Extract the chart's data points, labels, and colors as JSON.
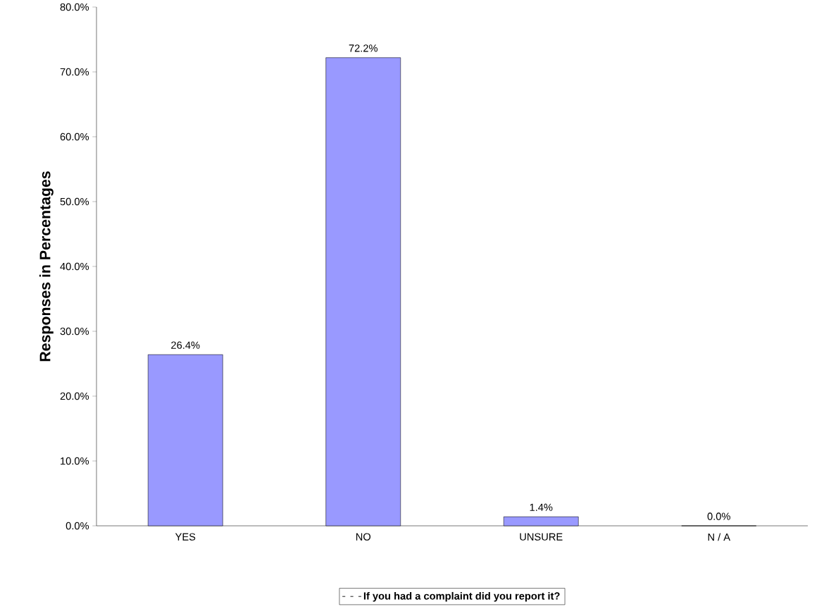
{
  "chart_data": {
    "type": "bar",
    "ylabel": "Responses in Percentages",
    "categories": [
      "YES",
      "NO",
      "UNSURE",
      "N / A"
    ],
    "series": [
      {
        "name": "If you had a complaint did you report it?",
        "color": "#9999ff",
        "values": [
          26.4,
          72.2,
          1.4,
          0.0
        ],
        "value_labels": [
          "26.4%",
          "72.2%",
          "1.4%",
          "0.0%"
        ]
      }
    ],
    "ylim": [
      0,
      80
    ],
    "yticks": [
      {
        "value": 0,
        "label": "0.0%"
      },
      {
        "value": 10,
        "label": "10.0%"
      },
      {
        "value": 20,
        "label": "20.0%"
      },
      {
        "value": 30,
        "label": "30.0%"
      },
      {
        "value": 40,
        "label": "40.0%"
      },
      {
        "value": 50,
        "label": "50.0%"
      },
      {
        "value": 60,
        "label": "60.0%"
      },
      {
        "value": 70,
        "label": "70.0%"
      },
      {
        "value": 80,
        "label": "80.0%"
      }
    ],
    "legend": "bottom",
    "grid": false
  }
}
